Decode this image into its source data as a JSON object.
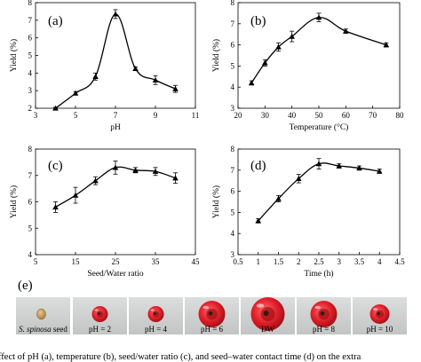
{
  "chart_data": [
    {
      "panel": "(a)",
      "type": "line",
      "xlabel": "pH",
      "ylabel": "Yield (%)",
      "xlim": [
        3,
        11
      ],
      "ylim": [
        2,
        8
      ],
      "xticks": [
        3,
        5,
        7,
        9,
        11
      ],
      "yticks": [
        2,
        3,
        4,
        5,
        6,
        7,
        8
      ],
      "x": [
        4,
        5,
        6,
        7,
        8,
        9,
        10
      ],
      "y": [
        2.0,
        2.85,
        3.8,
        7.35,
        4.25,
        3.6,
        3.1
      ],
      "err": [
        0.05,
        0.1,
        0.2,
        0.25,
        0.1,
        0.25,
        0.2
      ],
      "marker": "triangle",
      "line_style": "smooth",
      "grid": false
    },
    {
      "panel": "(b)",
      "type": "line",
      "xlabel": "Temperature (°C)",
      "ylabel": "Yield (%)",
      "xlim": [
        20,
        80
      ],
      "ylim": [
        3,
        8
      ],
      "xticks": [
        20,
        30,
        40,
        50,
        60,
        70,
        80
      ],
      "yticks": [
        3,
        4,
        5,
        6,
        7,
        8
      ],
      "x": [
        25,
        30,
        35,
        40,
        50,
        60,
        75
      ],
      "y": [
        4.2,
        5.15,
        5.9,
        6.4,
        7.3,
        6.65,
        6.0
      ],
      "err": [
        0.1,
        0.15,
        0.2,
        0.25,
        0.2,
        0.1,
        0.1
      ],
      "marker": "triangle",
      "line_style": "smooth",
      "grid": false
    },
    {
      "panel": "(c)",
      "type": "line",
      "xlabel": "Seed/Water ratio",
      "ylabel": "Yield (%)",
      "xlim": [
        5,
        45
      ],
      "ylim": [
        4,
        8
      ],
      "xticks": [
        5,
        15,
        25,
        35,
        45
      ],
      "yticks": [
        4,
        5,
        6,
        7,
        8
      ],
      "x": [
        10,
        15,
        20,
        25,
        30,
        35,
        40
      ],
      "y": [
        5.8,
        6.25,
        6.8,
        7.3,
        7.2,
        7.15,
        6.9
      ],
      "err": [
        0.2,
        0.3,
        0.15,
        0.25,
        0.1,
        0.15,
        0.2
      ],
      "marker": "triangle",
      "line_style": "smooth",
      "grid": false
    },
    {
      "panel": "(d)",
      "type": "line",
      "xlabel": "Time (h)",
      "ylabel": "Yield (%)",
      "xlim": [
        0.5,
        4.5
      ],
      "ylim": [
        3,
        8
      ],
      "xticks": [
        0.5,
        1,
        1.5,
        2,
        2.5,
        3,
        3.5,
        4,
        4.5
      ],
      "yticks": [
        3,
        4,
        5,
        6,
        7,
        8
      ],
      "x": [
        1,
        1.5,
        2,
        2.5,
        3,
        3.5,
        4
      ],
      "y": [
        4.6,
        5.65,
        6.6,
        7.3,
        7.2,
        7.1,
        6.95
      ],
      "err": [
        0.1,
        0.15,
        0.2,
        0.25,
        0.1,
        0.1,
        0.1
      ],
      "marker": "triangle",
      "line_style": "smooth",
      "grid": false
    }
  ],
  "panel_e": {
    "letter": "(e)",
    "photos": [
      {
        "italic": "S. spinosa",
        "rest": " seed",
        "kind": "seed"
      },
      {
        "label": "pH = 2",
        "kind": "small"
      },
      {
        "label": "pH = 4",
        "kind": "small"
      },
      {
        "label": "pH = 6",
        "kind": "large"
      },
      {
        "label": "DW",
        "kind": "xlarge"
      },
      {
        "label": "pH = 8",
        "kind": "large"
      },
      {
        "label": "pH = 10",
        "kind": "medium"
      }
    ]
  },
  "caption": "ffect of pH (a), temperature (b), seed/water ratio (c), and seed–water contact time (d) on the extra",
  "colors": {
    "line": "#000000",
    "gel": "#e0202a",
    "gel_dark": "#a40f17",
    "seed": "#c9a25e",
    "photo_bg": "#cfd0d0"
  }
}
